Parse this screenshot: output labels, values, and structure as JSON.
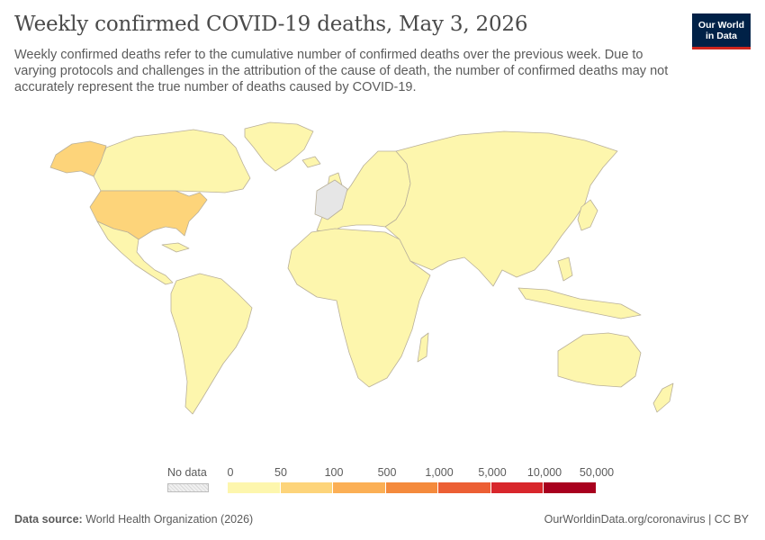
{
  "header": {
    "title": "Weekly confirmed COVID-19 deaths, May 3, 2026",
    "subtitle": "Weekly confirmed deaths refer to the cumulative number of confirmed deaths over the previous week. Due to varying protocols and challenges in the attribution of the cause of death, the number of confirmed deaths may not accurately represent the true number of deaths caused by COVID-19."
  },
  "logo": {
    "line1": "Our World",
    "line2": "in Data"
  },
  "legend": {
    "no_data_label": "No data",
    "ticks": [
      "0",
      "50",
      "100",
      "500",
      "1,000",
      "5,000",
      "10,000",
      "50,000"
    ],
    "colors": [
      "#fdf6ad",
      "#fdd47a",
      "#fbaf55",
      "#f48a3c",
      "#ec5f34",
      "#d8262b",
      "#a8001e"
    ]
  },
  "map_colors": {
    "base": "#fdf6ad",
    "usa": "#fdd47a",
    "alaska": "#fdd47a",
    "no_data": "#e6e6e6",
    "border": "#b9b09a"
  },
  "footer": {
    "source_label": "Data source:",
    "source_text": "World Health Organization (2026)",
    "url_text": "OurWorldinData.org/coronavirus | CC BY"
  }
}
